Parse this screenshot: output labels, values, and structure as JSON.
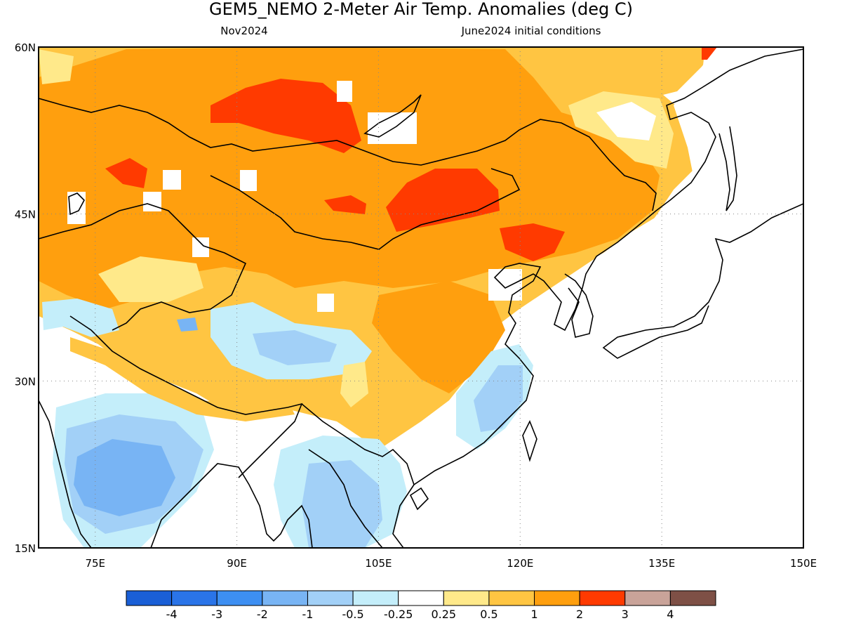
{
  "title": "GEM5_NEMO 2-Meter Air Temp. Anomalies (deg C)",
  "subtitle_left": "Nov2024",
  "subtitle_right": "June2024 initial conditions",
  "axes": {
    "lat_labels": [
      "60N",
      "45N",
      "30N",
      "15N"
    ],
    "lon_labels": [
      "75E",
      "90E",
      "105E",
      "120E",
      "135E",
      "150E"
    ],
    "lat_range": [
      15,
      60
    ],
    "lon_range": [
      69,
      150
    ],
    "grid": "dotted"
  },
  "colorbar": {
    "colors": [
      "#1a5fd6",
      "#2a74e8",
      "#3d8ff2",
      "#78b4f4",
      "#a2d0f7",
      "#c4eefa",
      "#ffffff",
      "#ffe98a",
      "#ffc542",
      "#ff9f0e",
      "#ff3a00",
      "#c9a399",
      "#7e5046"
    ],
    "labels": [
      "-4",
      "-3",
      "-2",
      "-1",
      "-0.5",
      "-0.25",
      "0.25",
      "0.5",
      "1",
      "2",
      "3",
      "4"
    ]
  },
  "map": {
    "coastline_color": "#000000",
    "regions": [
      {
        "name": "central-asia-warm",
        "level": "1 to 2"
      },
      {
        "name": "mongolia-hot-core",
        "level": "2 to 3"
      },
      {
        "name": "siberia-hot-core",
        "level": "2 to 3"
      },
      {
        "name": "northeast-china-hot",
        "level": "2 to 3"
      },
      {
        "name": "tibet-cool",
        "level": "-0.5 to -1"
      },
      {
        "name": "india-cool",
        "level": "-1 to -2"
      },
      {
        "name": "indochina-cool",
        "level": "-0.5 to -1"
      },
      {
        "name": "east-china-cool",
        "level": "-0.5 to -1"
      }
    ]
  }
}
